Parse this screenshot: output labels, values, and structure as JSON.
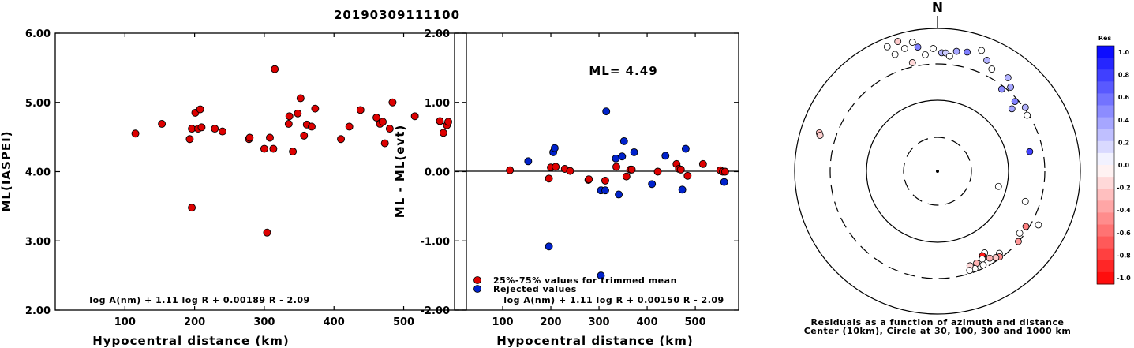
{
  "title": "20190309111100",
  "chart_data": [
    {
      "type": "scatter",
      "xlabel": "Hypocentral distance (km)",
      "ylabel": "ML(IASPEI)",
      "xlim": [
        0,
        590
      ],
      "ylim": [
        2.0,
        6.0
      ],
      "xticks": [
        "100",
        "200",
        "300",
        "400",
        "500"
      ],
      "yticks": [
        "6.00",
        "5.00",
        "4.00",
        "3.00",
        "2.00"
      ],
      "formula": "log A(nm) + 1.11 log R + 0.00189 R - 2.09",
      "point_color": "#dd0000",
      "points": [
        [
          115,
          4.55
        ],
        [
          153,
          4.69
        ],
        [
          193,
          4.47
        ],
        [
          196,
          4.62
        ],
        [
          201,
          4.85
        ],
        [
          205,
          4.62
        ],
        [
          210,
          4.64
        ],
        [
          208,
          4.9
        ],
        [
          229,
          4.62
        ],
        [
          240,
          4.58
        ],
        [
          278,
          4.47
        ],
        [
          279,
          4.49
        ],
        [
          300,
          4.33
        ],
        [
          313,
          4.33
        ],
        [
          308,
          4.49
        ],
        [
          315,
          5.48
        ],
        [
          335,
          4.69
        ],
        [
          336,
          4.8
        ],
        [
          341,
          4.29
        ],
        [
          348,
          4.84
        ],
        [
          352,
          5.06
        ],
        [
          357,
          4.52
        ],
        [
          361,
          4.68
        ],
        [
          368,
          4.65
        ],
        [
          373,
          4.91
        ],
        [
          410,
          4.47
        ],
        [
          422,
          4.65
        ],
        [
          438,
          4.89
        ],
        [
          461,
          4.78
        ],
        [
          466,
          4.69
        ],
        [
          470,
          4.72
        ],
        [
          473,
          4.41
        ],
        [
          480,
          4.62
        ],
        [
          484,
          5.0
        ],
        [
          516,
          4.8
        ],
        [
          552,
          4.73
        ],
        [
          557,
          4.56
        ],
        [
          562,
          4.67
        ],
        [
          564,
          4.72
        ],
        [
          592,
          4.55
        ],
        [
          196,
          3.48
        ],
        [
          304,
          3.12
        ]
      ]
    },
    {
      "type": "scatter",
      "xlabel": "Hypocentral distance (km)",
      "ylabel": "ML - ML(evt)",
      "xlim": [
        0,
        590
      ],
      "ylim": [
        -2.0,
        2.0
      ],
      "xticks": [
        "100",
        "200",
        "300",
        "400",
        "500"
      ],
      "yticks": [
        "2.00",
        "1.00",
        "0.00",
        "-1.00",
        "-2.00"
      ],
      "ml_label": "ML= 4.49",
      "legend": [
        "25%-75% values for trimmed mean",
        "Rejected values"
      ],
      "formula": "log A(nm) + 1.11 log R + 0.00150 R - 2.09",
      "colors": {
        "trimmed": "#dd0000",
        "rejected": "#0022cc"
      },
      "trimmed_points": [
        [
          115,
          0.02
        ],
        [
          196,
          -0.1
        ],
        [
          200,
          0.06
        ],
        [
          210,
          0.07
        ],
        [
          229,
          0.04
        ],
        [
          240,
          0.01
        ],
        [
          278,
          -0.12
        ],
        [
          279,
          -0.11
        ],
        [
          313,
          -0.13
        ],
        [
          336,
          0.07
        ],
        [
          357,
          -0.07
        ],
        [
          365,
          0.03
        ],
        [
          368,
          0.03
        ],
        [
          422,
          0.0
        ],
        [
          461,
          0.11
        ],
        [
          466,
          0.04
        ],
        [
          470,
          0.03
        ],
        [
          484,
          -0.06
        ],
        [
          516,
          0.11
        ],
        [
          552,
          0.02
        ],
        [
          557,
          0.0
        ],
        [
          562,
          0.0
        ]
      ],
      "rejected_points": [
        [
          153,
          0.15
        ],
        [
          205,
          0.28
        ],
        [
          208,
          0.34
        ],
        [
          304,
          -0.27
        ],
        [
          313,
          -0.27
        ],
        [
          315,
          0.87
        ],
        [
          335,
          0.19
        ],
        [
          341,
          -0.33
        ],
        [
          348,
          0.22
        ],
        [
          352,
          0.44
        ],
        [
          373,
          0.28
        ],
        [
          410,
          -0.18
        ],
        [
          438,
          0.23
        ],
        [
          473,
          -0.26
        ],
        [
          480,
          0.33
        ],
        [
          560,
          -0.15
        ],
        [
          592,
          -0.18
        ],
        [
          196,
          -1.08
        ],
        [
          304,
          -1.5
        ]
      ]
    },
    {
      "type": "polar-scatter",
      "north_label": "N",
      "caption": [
        "Residuals as a function of azimuth and distance",
        "Center (10km), Circle at 30, 100, 300 and 1000 km"
      ],
      "colorbar_title": "Res",
      "colorbar_ticks": [
        "1.0",
        "0.8",
        "0.6",
        "0.4",
        "0.2",
        "0.0",
        "-0.2",
        "-0.4",
        "-0.6",
        "-0.8",
        "-1.0"
      ],
      "stations": [
        [
          -72,
          0.87,
          -0.25
        ],
        [
          -73,
          0.86,
          -0.18
        ],
        [
          -22,
          0.94,
          0.0
        ],
        [
          -20,
          0.87,
          0.0
        ],
        [
          -17,
          0.95,
          -0.2
        ],
        [
          -15,
          0.89,
          0.0
        ],
        [
          -13,
          0.78,
          -0.15
        ],
        [
          -11,
          0.92,
          0.0
        ],
        [
          -9,
          0.88,
          0.5
        ],
        [
          -6,
          0.82,
          0.0
        ],
        [
          -2,
          0.86,
          0.0
        ],
        [
          2,
          0.83,
          0.3
        ],
        [
          4,
          0.83,
          0.2
        ],
        [
          6,
          0.81,
          0.0
        ],
        [
          9,
          0.85,
          0.35
        ],
        [
          14,
          0.86,
          0.5
        ],
        [
          20,
          0.9,
          0.0
        ],
        [
          24,
          0.85,
          0.3
        ],
        [
          28,
          0.81,
          0.0
        ],
        [
          37,
          0.82,
          0.3
        ],
        [
          38,
          0.73,
          0.45
        ],
        [
          41,
          0.78,
          0.35
        ],
        [
          48,
          0.73,
          0.5
        ],
        [
          50,
          0.68,
          0.35
        ],
        [
          54,
          0.76,
          0.3
        ],
        [
          58,
          0.74,
          0.0
        ],
        [
          78,
          0.66,
          0.75
        ],
        [
          104,
          0.44,
          0.0
        ],
        [
          109,
          0.65,
          0.0
        ],
        [
          118,
          0.8,
          0.0
        ],
        [
          122,
          0.73,
          -0.5
        ],
        [
          127,
          0.72,
          0.0
        ],
        [
          131,
          0.75,
          -0.4
        ],
        [
          143,
          0.72,
          0.0
        ],
        [
          144,
          0.74,
          -0.45
        ],
        [
          146,
          0.73,
          -0.2
        ],
        [
          149,
          0.71,
          -0.3
        ],
        [
          150,
          0.66,
          0.0
        ],
        [
          152,
          0.67,
          -0.9
        ],
        [
          153,
          0.69,
          0.0
        ],
        [
          154,
          0.73,
          0.0
        ],
        [
          157,
          0.7,
          -0.3
        ],
        [
          159,
          0.73,
          0.0
        ],
        [
          161,
          0.7,
          -0.15
        ],
        [
          162,
          0.73,
          0.0
        ]
      ]
    }
  ]
}
